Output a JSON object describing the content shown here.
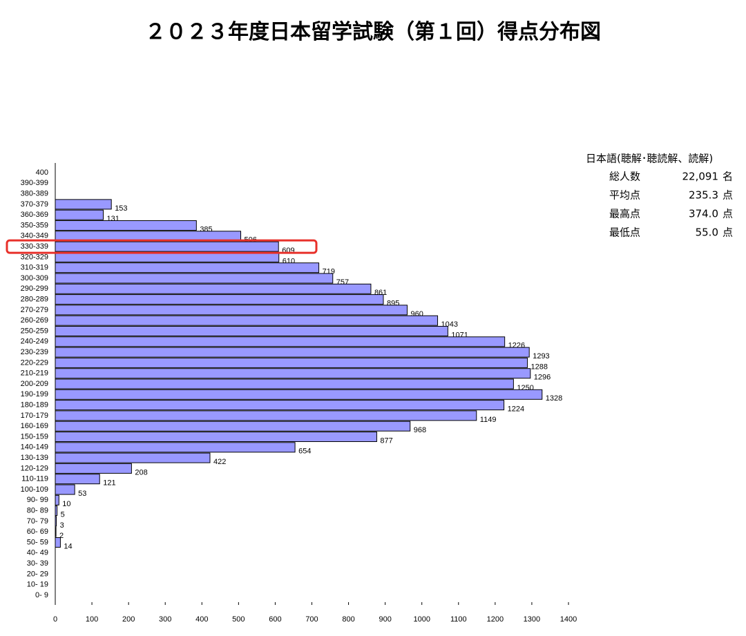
{
  "chart_data": {
    "type": "barh",
    "title": "２０２３年度日本留学試験（第１回）得点分布図",
    "categories": [
      "400",
      "390-399",
      "380-389",
      "370-379",
      "360-369",
      "350-359",
      "340-349",
      "330-339",
      "320-329",
      "310-319",
      "300-309",
      "290-299",
      "280-289",
      "270-279",
      "260-269",
      "250-259",
      "240-249",
      "230-239",
      "220-229",
      "210-219",
      "200-209",
      "190-199",
      "180-189",
      "170-179",
      "160-169",
      "150-159",
      "140-149",
      "130-139",
      "120-129",
      "110-119",
      "100-109",
      "90- 99",
      "80- 89",
      "70- 79",
      "60- 69",
      "50- 59",
      "40- 49",
      "30- 39",
      "20- 29",
      "10- 19",
      "0- 9"
    ],
    "values": [
      null,
      null,
      null,
      153,
      131,
      385,
      506,
      609,
      610,
      719,
      757,
      861,
      895,
      960,
      1043,
      1071,
      1226,
      1293,
      1288,
      1296,
      1250,
      1328,
      1224,
      1149,
      968,
      877,
      654,
      422,
      208,
      121,
      53,
      10,
      5,
      3,
      2,
      14,
      null,
      null,
      null,
      null,
      null
    ],
    "color": "#9999ff",
    "xlim": [
      0,
      1400
    ],
    "xticks": [
      0,
      100,
      200,
      300,
      400,
      500,
      600,
      700,
      800,
      900,
      1000,
      1100,
      1200,
      1300,
      1400
    ],
    "grid": false,
    "info": {
      "title": "日本語(聴解･聴読解、読解)",
      "rows": [
        {
          "label": "総人数",
          "value": "22,091",
          "unit": "名"
        },
        {
          "label": "平均点",
          "value": "235.3",
          "unit": "点"
        },
        {
          "label": "最高点",
          "value": "374.0",
          "unit": "点"
        },
        {
          "label": "最低点",
          "value": "55.0",
          "unit": "点"
        }
      ]
    }
  }
}
